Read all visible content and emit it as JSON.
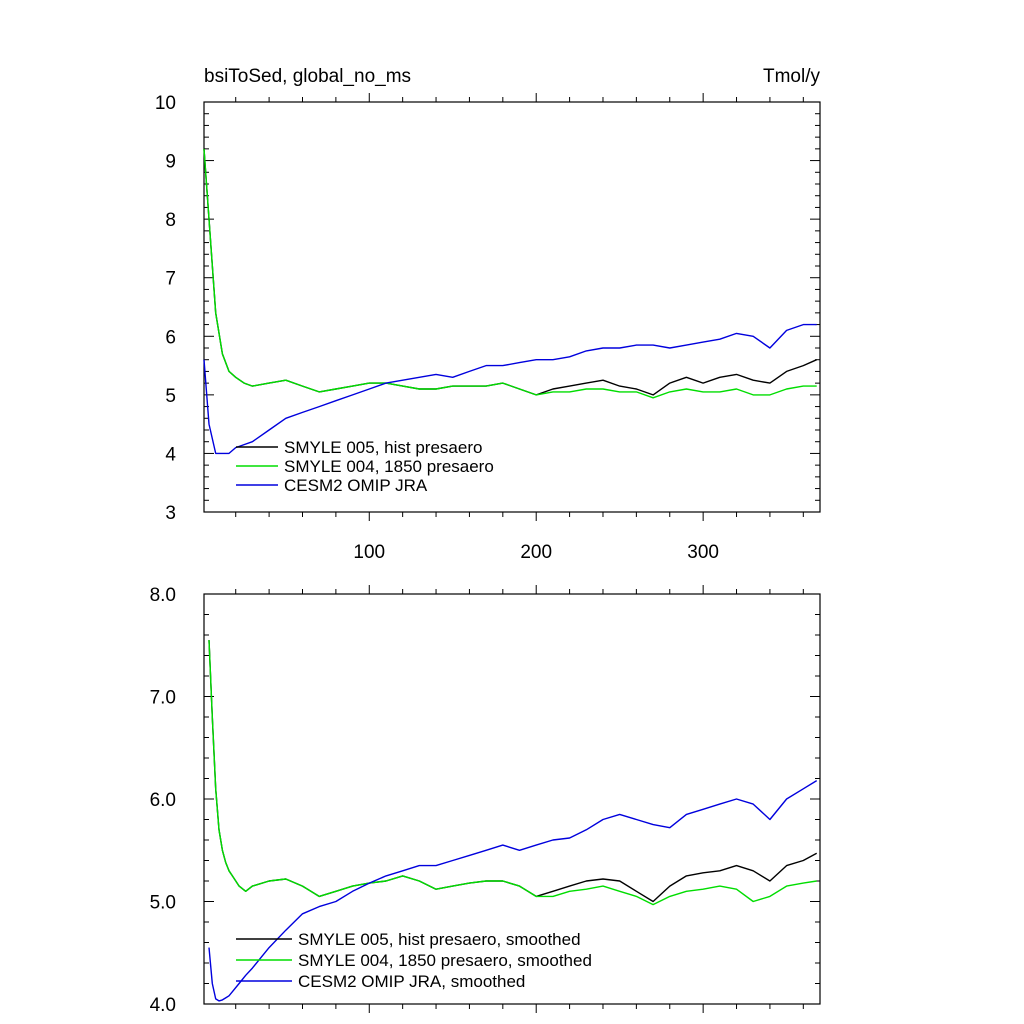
{
  "chart_data": [
    {
      "type": "line",
      "title_left": "bsiToSed, global_no_ms",
      "title_right": "Tmol/y",
      "xlim": [
        1,
        370
      ],
      "ylim": [
        3,
        10
      ],
      "xticks": [
        100,
        200,
        300
      ],
      "xtick_labels": [
        "100",
        "200",
        "300"
      ],
      "yticks": [
        3,
        4,
        5,
        6,
        7,
        8,
        9,
        10
      ],
      "ytick_labels": [
        "3",
        "4",
        "5",
        "6",
        "7",
        "8",
        "9",
        "10"
      ],
      "legend_position": "lower-left",
      "series": [
        {
          "name": "SMYLE 005, hist presaero",
          "color": "#000000",
          "x": [
            1,
            4,
            8,
            12,
            16,
            20,
            25,
            30,
            40,
            50,
            60,
            70,
            80,
            90,
            100,
            110,
            120,
            130,
            140,
            150,
            160,
            170,
            180,
            190,
            200,
            210,
            220,
            230,
            240,
            250,
            260,
            270,
            280,
            290,
            300,
            310,
            320,
            330,
            340,
            350,
            360,
            368
          ],
          "y": [
            9.2,
            8.0,
            6.4,
            5.7,
            5.4,
            5.3,
            5.2,
            5.15,
            5.2,
            5.25,
            5.15,
            5.05,
            5.1,
            5.15,
            5.2,
            5.2,
            5.15,
            5.1,
            5.1,
            5.15,
            5.15,
            5.15,
            5.2,
            5.1,
            5.0,
            5.1,
            5.15,
            5.2,
            5.25,
            5.15,
            5.1,
            5.0,
            5.2,
            5.3,
            5.2,
            5.3,
            5.35,
            5.25,
            5.2,
            5.4,
            5.5,
            5.6
          ]
        },
        {
          "name": "SMYLE 004, 1850 presaero",
          "color": "#00dd00",
          "x": [
            1,
            4,
            8,
            12,
            16,
            20,
            25,
            30,
            40,
            50,
            60,
            70,
            80,
            90,
            100,
            110,
            120,
            130,
            140,
            150,
            160,
            170,
            180,
            190,
            200,
            210,
            220,
            230,
            240,
            250,
            260,
            270,
            280,
            290,
            300,
            310,
            320,
            330,
            340,
            350,
            360,
            368
          ],
          "y": [
            9.2,
            8.0,
            6.4,
            5.7,
            5.4,
            5.3,
            5.2,
            5.15,
            5.2,
            5.25,
            5.15,
            5.05,
            5.1,
            5.15,
            5.2,
            5.2,
            5.15,
            5.1,
            5.1,
            5.15,
            5.15,
            5.15,
            5.2,
            5.1,
            5.0,
            5.05,
            5.05,
            5.1,
            5.1,
            5.05,
            5.05,
            4.95,
            5.05,
            5.1,
            5.05,
            5.05,
            5.1,
            5.0,
            5.0,
            5.1,
            5.15,
            5.15
          ]
        },
        {
          "name": "CESM2 OMIP JRA",
          "color": "#0000dd",
          "x": [
            1,
            4,
            8,
            12,
            16,
            20,
            25,
            30,
            40,
            50,
            60,
            70,
            80,
            90,
            100,
            110,
            120,
            130,
            140,
            150,
            160,
            170,
            180,
            190,
            200,
            210,
            220,
            230,
            240,
            250,
            260,
            270,
            280,
            290,
            300,
            310,
            320,
            330,
            340,
            350,
            360,
            368
          ],
          "y": [
            5.6,
            4.5,
            4.0,
            4.0,
            4.0,
            4.1,
            4.15,
            4.2,
            4.4,
            4.6,
            4.7,
            4.8,
            4.9,
            5.0,
            5.1,
            5.2,
            5.25,
            5.3,
            5.35,
            5.3,
            5.4,
            5.5,
            5.5,
            5.55,
            5.6,
            5.6,
            5.65,
            5.75,
            5.8,
            5.8,
            5.85,
            5.85,
            5.8,
            5.85,
            5.9,
            5.95,
            6.05,
            6.0,
            5.8,
            6.1,
            6.2,
            6.2
          ]
        }
      ]
    },
    {
      "type": "line",
      "xlim": [
        1,
        370
      ],
      "ylim": [
        4.0,
        8.0
      ],
      "xticks": [
        100,
        200,
        300
      ],
      "yticks": [
        4.0,
        5.0,
        6.0,
        7.0,
        8.0
      ],
      "ytick_labels": [
        "4.0",
        "5.0",
        "6.0",
        "7.0",
        "8.0"
      ],
      "legend_position": "lower-left",
      "series": [
        {
          "name": "SMYLE 005, hist presaero, smoothed",
          "color": "#000000",
          "x": [
            4,
            6,
            8,
            10,
            12,
            14,
            16,
            18,
            22,
            26,
            30,
            40,
            50,
            60,
            70,
            80,
            90,
            100,
            110,
            120,
            130,
            140,
            150,
            160,
            170,
            180,
            190,
            200,
            210,
            220,
            230,
            240,
            250,
            260,
            270,
            280,
            290,
            300,
            310,
            320,
            330,
            340,
            350,
            360,
            368
          ],
          "y": [
            7.55,
            6.8,
            6.1,
            5.7,
            5.5,
            5.38,
            5.3,
            5.25,
            5.15,
            5.1,
            5.15,
            5.2,
            5.22,
            5.15,
            5.05,
            5.1,
            5.15,
            5.18,
            5.2,
            5.25,
            5.2,
            5.12,
            5.15,
            5.18,
            5.2,
            5.2,
            5.15,
            5.05,
            5.1,
            5.15,
            5.2,
            5.22,
            5.2,
            5.1,
            5.0,
            5.15,
            5.25,
            5.28,
            5.3,
            5.35,
            5.3,
            5.2,
            5.35,
            5.4,
            5.47
          ]
        },
        {
          "name": "SMYLE 004, 1850 presaero, smoothed",
          "color": "#00dd00",
          "x": [
            4,
            6,
            8,
            10,
            12,
            14,
            16,
            18,
            22,
            26,
            30,
            40,
            50,
            60,
            70,
            80,
            90,
            100,
            110,
            120,
            130,
            140,
            150,
            160,
            170,
            180,
            190,
            200,
            210,
            220,
            230,
            240,
            250,
            260,
            270,
            280,
            290,
            300,
            310,
            320,
            330,
            340,
            350,
            360,
            368
          ],
          "y": [
            7.55,
            6.8,
            6.1,
            5.7,
            5.5,
            5.38,
            5.3,
            5.25,
            5.15,
            5.1,
            5.15,
            5.2,
            5.22,
            5.15,
            5.05,
            5.1,
            5.15,
            5.18,
            5.2,
            5.25,
            5.2,
            5.12,
            5.15,
            5.18,
            5.2,
            5.2,
            5.15,
            5.05,
            5.05,
            5.1,
            5.12,
            5.15,
            5.1,
            5.05,
            4.97,
            5.05,
            5.1,
            5.12,
            5.15,
            5.12,
            5.0,
            5.05,
            5.15,
            5.18,
            5.2
          ]
        },
        {
          "name": "CESM2 OMIP JRA, smoothed",
          "color": "#0000dd",
          "x": [
            4,
            6,
            8,
            10,
            12,
            14,
            16,
            18,
            22,
            26,
            30,
            40,
            50,
            60,
            70,
            80,
            90,
            100,
            110,
            120,
            130,
            140,
            150,
            160,
            170,
            180,
            190,
            200,
            210,
            220,
            230,
            240,
            250,
            260,
            270,
            280,
            290,
            300,
            310,
            320,
            330,
            340,
            350,
            360,
            368
          ],
          "y": [
            4.55,
            4.2,
            4.05,
            4.03,
            4.04,
            4.06,
            4.08,
            4.12,
            4.2,
            4.28,
            4.35,
            4.55,
            4.72,
            4.88,
            4.95,
            5.0,
            5.1,
            5.18,
            5.25,
            5.3,
            5.35,
            5.35,
            5.4,
            5.45,
            5.5,
            5.55,
            5.5,
            5.55,
            5.6,
            5.62,
            5.7,
            5.8,
            5.85,
            5.8,
            5.75,
            5.72,
            5.85,
            5.9,
            5.95,
            6.0,
            5.95,
            5.8,
            6.0,
            6.1,
            6.18
          ]
        }
      ]
    }
  ]
}
